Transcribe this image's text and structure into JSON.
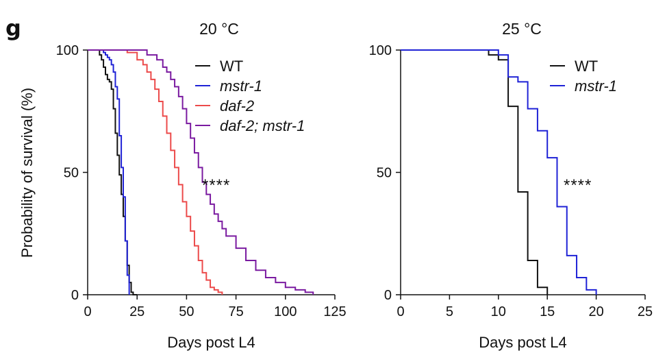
{
  "panel_label": "g",
  "ylabel": "Probability of survival (%)",
  "colors": {
    "WT": "#111111",
    "mstr-1": "#1f22d6",
    "daf-2": "#ec4a4a",
    "daf-2; mstr-1": "#7a1aa0"
  },
  "chart_data": [
    {
      "type": "line",
      "step": true,
      "title": "20 °C",
      "xlabel": "Days post L4",
      "ylabel": "Probability of survival (%)",
      "xlim": [
        0,
        125
      ],
      "ylim": [
        0,
        100
      ],
      "xticks": [
        0,
        25,
        50,
        75,
        100,
        125
      ],
      "yticks": [
        0,
        50,
        100
      ],
      "annotation": "****",
      "legend_position": "top-right",
      "series": [
        {
          "name": "WT",
          "style": "normal",
          "color": "#111111",
          "x": [
            0,
            5,
            6,
            7,
            8,
            9,
            10,
            11,
            12,
            13,
            14,
            15,
            16,
            17,
            18,
            19,
            20,
            21,
            22,
            23,
            24,
            25
          ],
          "y": [
            100,
            100,
            98,
            96,
            93,
            90,
            88,
            87,
            84,
            76,
            66,
            57,
            49,
            41,
            32,
            22,
            12,
            5,
            1,
            0,
            0,
            0
          ]
        },
        {
          "name": "mstr-1",
          "style": "italic",
          "color": "#1f22d6",
          "x": [
            0,
            7,
            8,
            9,
            10,
            11,
            12,
            13,
            14,
            15,
            16,
            17,
            18,
            19,
            20,
            21
          ],
          "y": [
            100,
            100,
            99,
            98,
            97,
            96,
            94,
            91,
            85,
            80,
            65,
            52,
            40,
            22,
            8,
            0
          ]
        },
        {
          "name": "daf-2",
          "style": "italic",
          "color": "#ec4a4a",
          "x": [
            0,
            10,
            15,
            20,
            25,
            28,
            30,
            32,
            34,
            36,
            38,
            40,
            42,
            44,
            46,
            48,
            50,
            52,
            54,
            56,
            58,
            60,
            62,
            64,
            66,
            68
          ],
          "y": [
            100,
            100,
            100,
            99,
            96,
            94,
            91,
            88,
            84,
            79,
            73,
            66,
            59,
            52,
            45,
            38,
            32,
            26,
            20,
            14,
            9,
            6,
            3,
            2,
            1,
            0
          ]
        },
        {
          "name": "daf-2; mstr-1",
          "style": "italic",
          "color": "#7a1aa0",
          "x": [
            0,
            15,
            20,
            25,
            30,
            35,
            38,
            40,
            42,
            44,
            46,
            48,
            50,
            52,
            54,
            56,
            58,
            60,
            62,
            64,
            66,
            68,
            70,
            75,
            80,
            85,
            90,
            95,
            100,
            105,
            110,
            114
          ],
          "y": [
            100,
            100,
            100,
            100,
            98,
            96,
            93,
            91,
            88,
            85,
            81,
            76,
            70,
            64,
            58,
            52,
            46,
            41,
            37,
            33,
            30,
            27,
            24,
            19,
            14,
            10,
            7,
            5,
            3,
            2,
            1,
            0
          ]
        }
      ]
    },
    {
      "type": "line",
      "step": true,
      "title": "25 °C",
      "xlabel": "Days post L4",
      "ylabel": "",
      "xlim": [
        0,
        25
      ],
      "ylim": [
        0,
        100
      ],
      "xticks": [
        0,
        5,
        10,
        15,
        20,
        25
      ],
      "yticks": [
        0,
        50,
        100
      ],
      "annotation": "****",
      "legend_position": "top-right",
      "series": [
        {
          "name": "WT",
          "style": "normal",
          "color": "#111111",
          "x": [
            0,
            9,
            10,
            11,
            12,
            13,
            14,
            15
          ],
          "y": [
            100,
            98,
            96,
            77,
            42,
            14,
            3,
            0
          ]
        },
        {
          "name": "mstr-1",
          "style": "italic",
          "color": "#1f22d6",
          "x": [
            0,
            10,
            11,
            12,
            13,
            14,
            15,
            16,
            17,
            18,
            19,
            20
          ],
          "y": [
            100,
            98,
            89,
            87,
            76,
            67,
            56,
            36,
            16,
            7,
            2,
            0
          ]
        }
      ]
    }
  ]
}
